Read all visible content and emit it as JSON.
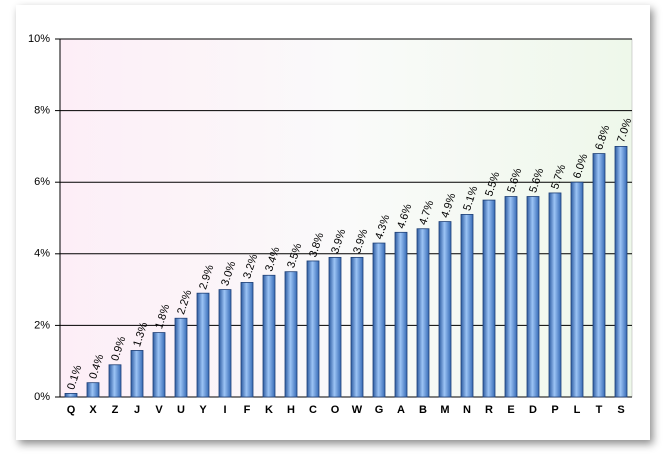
{
  "chart_data": {
    "type": "bar",
    "categories": [
      "Q",
      "X",
      "Z",
      "J",
      "V",
      "U",
      "Y",
      "I",
      "F",
      "K",
      "H",
      "C",
      "O",
      "W",
      "G",
      "A",
      "B",
      "M",
      "N",
      "R",
      "E",
      "D",
      "P",
      "L",
      "T",
      "S"
    ],
    "values": [
      0.1,
      0.4,
      0.9,
      1.3,
      1.8,
      2.2,
      2.9,
      3.0,
      3.2,
      3.4,
      3.5,
      3.8,
      3.9,
      3.9,
      4.3,
      4.6,
      4.7,
      4.9,
      5.1,
      5.5,
      5.6,
      5.6,
      5.7,
      6.0,
      6.8,
      7.0
    ],
    "value_labels": [
      "0.1%",
      "0.4%",
      "0.9%",
      "1.3%",
      "1.8%",
      "2.2%",
      "2.9%",
      "3.0%",
      "3.2%",
      "3.4%",
      "3.5%",
      "3.8%",
      "3.9%",
      "3.9%",
      "4.3%",
      "4.6%",
      "4.7%",
      "4.9%",
      "5.1%",
      "5.5%",
      "5.6%",
      "5.6%",
      "5.7%",
      "6.0%",
      "6.8%",
      "7.0%"
    ],
    "color": "#5b8fd6",
    "ylim": [
      0,
      10
    ],
    "yticks": [
      {
        "value": 0,
        "label": "0%"
      },
      {
        "value": 2,
        "label": "2%"
      },
      {
        "value": 4,
        "label": "4%"
      },
      {
        "value": 6,
        "label": "6%"
      },
      {
        "value": 8,
        "label": "8%"
      },
      {
        "value": 10,
        "label": "10%"
      }
    ],
    "grid": true
  }
}
